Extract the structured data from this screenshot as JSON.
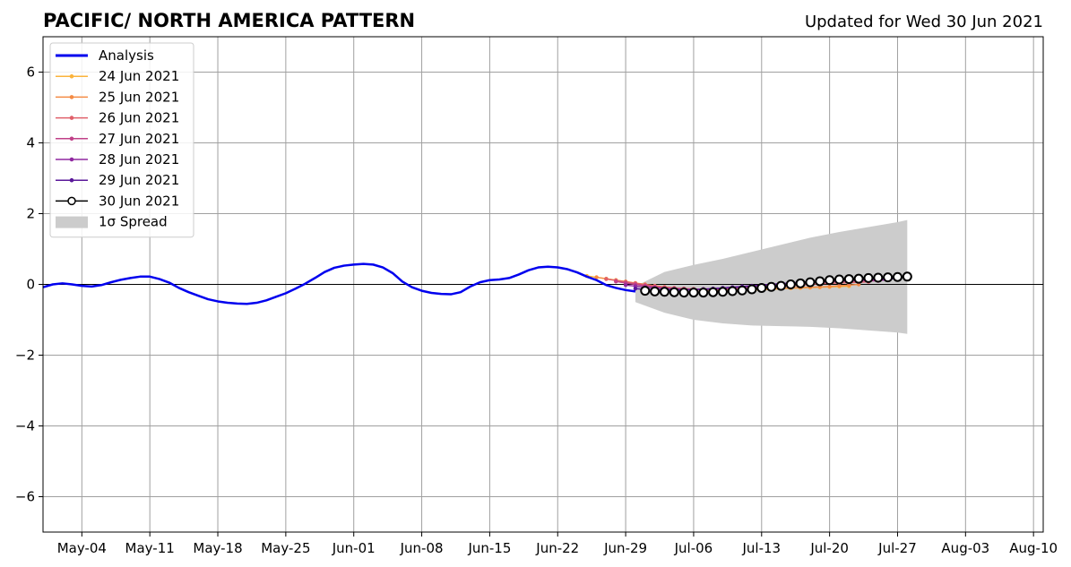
{
  "chart_data": {
    "type": "line",
    "title": "PACIFIC/ NORTH AMERICA PATTERN",
    "subtitle": "Updated for Wed 30 Jun 2021",
    "xlabel": "",
    "ylabel": "",
    "x_range": [
      "2021-04-30",
      "2021-08-11"
    ],
    "ylim": [
      -7,
      7
    ],
    "x_ticks": [
      {
        "date": "2021-05-04",
        "label": "May-04"
      },
      {
        "date": "2021-05-11",
        "label": "May-11"
      },
      {
        "date": "2021-05-18",
        "label": "May-18"
      },
      {
        "date": "2021-05-25",
        "label": "May-25"
      },
      {
        "date": "2021-06-01",
        "label": "Jun-01"
      },
      {
        "date": "2021-06-08",
        "label": "Jun-08"
      },
      {
        "date": "2021-06-15",
        "label": "Jun-15"
      },
      {
        "date": "2021-06-22",
        "label": "Jun-22"
      },
      {
        "date": "2021-06-29",
        "label": "Jun-29"
      },
      {
        "date": "2021-07-06",
        "label": "Jul-06"
      },
      {
        "date": "2021-07-13",
        "label": "Jul-13"
      },
      {
        "date": "2021-07-20",
        "label": "Jul-20"
      },
      {
        "date": "2021-07-27",
        "label": "Jul-27"
      },
      {
        "date": "2021-08-03",
        "label": "Aug-03"
      },
      {
        "date": "2021-08-10",
        "label": "Aug-10"
      }
    ],
    "y_ticks": [
      {
        "value": 6,
        "label": "6"
      },
      {
        "value": 4,
        "label": "4"
      },
      {
        "value": 2,
        "label": "2"
      },
      {
        "value": 0,
        "label": "0"
      },
      {
        "value": -2,
        "label": "−2"
      },
      {
        "value": -4,
        "label": "−4"
      },
      {
        "value": -6,
        "label": "−6"
      }
    ],
    "grid": true,
    "legend_position": "top-left",
    "spread": {
      "label": "1σ Spread",
      "color": "#cccccc",
      "dates": [
        "2021-06-30",
        "2021-07-03",
        "2021-07-06",
        "2021-07-09",
        "2021-07-12",
        "2021-07-15",
        "2021-07-18",
        "2021-07-21",
        "2021-07-24",
        "2021-07-27",
        "2021-07-28"
      ],
      "upper": [
        -0.05,
        0.35,
        0.55,
        0.72,
        0.92,
        1.12,
        1.32,
        1.48,
        1.62,
        1.76,
        1.82
      ],
      "lower": [
        -0.5,
        -0.8,
        -1.0,
        -1.1,
        -1.16,
        -1.18,
        -1.2,
        -1.24,
        -1.3,
        -1.36,
        -1.4
      ]
    },
    "analysis": {
      "name": "Analysis",
      "color": "#0000ee",
      "dates": [
        "2021-04-30",
        "2021-05-01",
        "2021-05-02",
        "2021-05-03",
        "2021-05-04",
        "2021-05-05",
        "2021-05-06",
        "2021-05-07",
        "2021-05-08",
        "2021-05-09",
        "2021-05-10",
        "2021-05-11",
        "2021-05-12",
        "2021-05-13",
        "2021-05-14",
        "2021-05-15",
        "2021-05-16",
        "2021-05-17",
        "2021-05-18",
        "2021-05-19",
        "2021-05-20",
        "2021-05-21",
        "2021-05-22",
        "2021-05-23",
        "2021-05-24",
        "2021-05-25",
        "2021-05-26",
        "2021-05-27",
        "2021-05-28",
        "2021-05-29",
        "2021-05-30",
        "2021-05-31",
        "2021-06-01",
        "2021-06-02",
        "2021-06-03",
        "2021-06-04",
        "2021-06-05",
        "2021-06-06",
        "2021-06-07",
        "2021-06-08",
        "2021-06-09",
        "2021-06-10",
        "2021-06-11",
        "2021-06-12",
        "2021-06-13",
        "2021-06-14",
        "2021-06-15",
        "2021-06-16",
        "2021-06-17",
        "2021-06-18",
        "2021-06-19",
        "2021-06-20",
        "2021-06-21",
        "2021-06-22",
        "2021-06-23",
        "2021-06-24",
        "2021-06-25",
        "2021-06-26",
        "2021-06-27",
        "2021-06-28",
        "2021-06-29",
        "2021-06-30"
      ],
      "values": [
        -0.08,
        0.0,
        0.03,
        0.0,
        -0.04,
        -0.06,
        -0.02,
        0.06,
        0.13,
        0.18,
        0.22,
        0.22,
        0.15,
        0.05,
        -0.1,
        -0.22,
        -0.32,
        -0.42,
        -0.48,
        -0.52,
        -0.54,
        -0.55,
        -0.52,
        -0.45,
        -0.35,
        -0.25,
        -0.12,
        0.02,
        0.18,
        0.35,
        0.47,
        0.53,
        0.56,
        0.58,
        0.56,
        0.48,
        0.32,
        0.08,
        -0.08,
        -0.18,
        -0.24,
        -0.27,
        -0.28,
        -0.22,
        -0.06,
        0.06,
        0.12,
        0.14,
        0.18,
        0.28,
        0.4,
        0.48,
        0.5,
        0.48,
        0.43,
        0.34,
        0.22,
        0.12,
        -0.02,
        -0.1,
        -0.16,
        -0.2
      ]
    },
    "series": [
      {
        "name": "24 Jun 2021",
        "color": "#fbb33c",
        "start": "2021-06-25",
        "values": [
          0.24,
          0.2,
          0.16,
          0.12,
          0.08,
          0.03,
          -0.02,
          -0.06,
          -0.1,
          -0.12,
          -0.14,
          -0.15,
          -0.16,
          -0.16,
          -0.16,
          -0.16,
          -0.16,
          -0.16,
          -0.15,
          -0.14,
          -0.12,
          -0.11,
          -0.1,
          -0.09,
          -0.08,
          -0.07,
          -0.06,
          -0.05
        ]
      },
      {
        "name": "25 Jun 2021",
        "color": "#f48b44",
        "start": "2021-06-26",
        "values": [
          0.2,
          0.16,
          0.12,
          0.08,
          0.04,
          0.0,
          -0.04,
          -0.07,
          -0.1,
          -0.12,
          -0.13,
          -0.14,
          -0.15,
          -0.15,
          -0.15,
          -0.15,
          -0.14,
          -0.13,
          -0.12,
          -0.11,
          -0.1,
          -0.09,
          -0.08,
          -0.07,
          -0.06,
          -0.04,
          -0.02,
          0.0
        ]
      },
      {
        "name": "26 Jun 2021",
        "color": "#e0606a",
        "start": "2021-06-27",
        "values": [
          0.15,
          0.11,
          0.07,
          0.03,
          -0.01,
          -0.05,
          -0.08,
          -0.1,
          -0.12,
          -0.13,
          -0.14,
          -0.14,
          -0.14,
          -0.13,
          -0.12,
          -0.11,
          -0.1,
          -0.08,
          -0.06,
          -0.04,
          -0.02,
          0.0,
          0.02,
          0.03,
          0.04,
          0.05,
          0.06,
          0.07
        ]
      },
      {
        "name": "27 Jun 2021",
        "color": "#c04088",
        "start": "2021-06-28",
        "values": [
          0.08,
          0.04,
          0.0,
          -0.04,
          -0.07,
          -0.1,
          -0.12,
          -0.13,
          -0.14,
          -0.14,
          -0.13,
          -0.12,
          -0.1,
          -0.08,
          -0.06,
          -0.04,
          -0.02,
          0.0,
          0.02,
          0.04,
          0.05,
          0.06,
          0.07,
          0.08,
          0.09,
          0.1,
          0.1,
          0.1
        ]
      },
      {
        "name": "28 Jun 2021",
        "color": "#9028a0",
        "start": "2021-06-29",
        "values": [
          -0.02,
          -0.05,
          -0.08,
          -0.1,
          -0.12,
          -0.13,
          -0.14,
          -0.14,
          -0.13,
          -0.12,
          -0.1,
          -0.08,
          -0.06,
          -0.04,
          -0.02,
          0.0,
          0.02,
          0.04,
          0.06,
          0.07,
          0.08,
          0.09,
          0.1,
          0.11,
          0.12,
          0.12,
          0.12,
          0.12
        ]
      },
      {
        "name": "29 Jun 2021",
        "color": "#5a189a",
        "start": "2021-06-30",
        "values": [
          -0.12,
          -0.14,
          -0.15,
          -0.16,
          -0.16,
          -0.16,
          -0.15,
          -0.14,
          -0.12,
          -0.1,
          -0.08,
          -0.06,
          -0.04,
          -0.02,
          0.0,
          0.02,
          0.04,
          0.06,
          0.08,
          0.1,
          0.11,
          0.12,
          0.13,
          0.14,
          0.15,
          0.16,
          0.16,
          0.16
        ]
      },
      {
        "name": "30 Jun 2021",
        "color": "#000000",
        "marker": "open-circle",
        "start": "2021-07-01",
        "values": [
          -0.18,
          -0.2,
          -0.21,
          -0.22,
          -0.23,
          -0.23,
          -0.23,
          -0.22,
          -0.21,
          -0.19,
          -0.17,
          -0.14,
          -0.1,
          -0.07,
          -0.04,
          0.0,
          0.03,
          0.06,
          0.09,
          0.12,
          0.14,
          0.15,
          0.16,
          0.18,
          0.19,
          0.2,
          0.21,
          0.22
        ]
      }
    ]
  }
}
